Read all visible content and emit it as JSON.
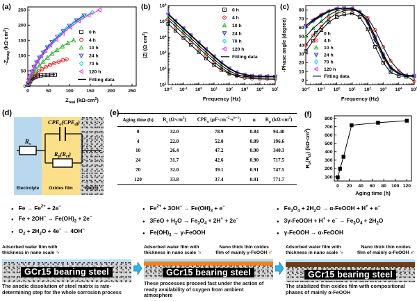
{
  "ui": {
    "bullet": "●",
    "pointer_left": "↘",
    "pointer_right": "↙"
  },
  "panels": {
    "a_tag": "(a)",
    "b_tag": "(b)",
    "c_tag": "(c)",
    "d_tag": "(d)",
    "e_tag": "(e)",
    "f_tag": "(f)"
  },
  "chart_data": [
    {
      "id": "a",
      "tag": "(a)",
      "type": "scatter",
      "xlabel": "Z_{real} (kΩ·cm^{2})",
      "ylabel": "-Z_{imag} (kΩ·cm^{2})",
      "xlim": [
        0,
        260
      ],
      "ylim": [
        0,
        260
      ],
      "xticks": [
        0,
        50,
        100,
        150,
        200,
        250
      ],
      "yticks": [
        0,
        50,
        100,
        150,
        200,
        250
      ],
      "fit_label": "Fitting data",
      "legend_position": "right-middle",
      "series": [
        {
          "name": "0 h",
          "marker": "square",
          "color": "#000000",
          "x": [
            1,
            2,
            4,
            6,
            9,
            13,
            18,
            24,
            31,
            39,
            48,
            57,
            65
          ],
          "y": [
            4,
            8,
            13,
            18,
            23,
            27,
            30,
            33,
            35,
            36,
            36,
            37,
            37
          ]
        },
        {
          "name": "4 h",
          "marker": "circle",
          "color": "#ee1111",
          "x": [
            2,
            4,
            8,
            13,
            19,
            26,
            34,
            43,
            53,
            63,
            74,
            84,
            93
          ],
          "y": [
            8,
            15,
            24,
            32,
            40,
            48,
            55,
            62,
            69,
            75,
            80,
            85,
            88
          ]
        },
        {
          "name": "10 h",
          "marker": "tri-up",
          "color": "#19b219",
          "x": [
            2,
            5,
            9,
            14,
            20,
            28,
            37,
            47,
            58,
            70,
            83,
            96,
            110
          ],
          "y": [
            10,
            20,
            31,
            43,
            55,
            67,
            80,
            93,
            106,
            118,
            130,
            141,
            150
          ]
        },
        {
          "name": "24 h",
          "marker": "tri-down",
          "color": "#2121c8",
          "x": [
            1,
            3,
            6,
            10,
            15,
            21,
            28,
            37,
            47,
            58,
            71,
            85,
            100,
            117,
            135
          ],
          "y": [
            8,
            20,
            33,
            47,
            62,
            77,
            93,
            110,
            127,
            144,
            162,
            180,
            198,
            216,
            232
          ]
        },
        {
          "name": "70 h",
          "marker": "diamond",
          "color": "#00d2e6",
          "x": [
            1,
            3,
            6,
            10,
            15,
            22,
            30,
            40,
            51,
            63,
            77,
            93,
            110,
            131,
            155
          ],
          "y": [
            8,
            20,
            34,
            48,
            63,
            79,
            96,
            113,
            131,
            149,
            168,
            188,
            207,
            226,
            242
          ]
        },
        {
          "name": "120 h",
          "marker": "tri-left",
          "color": "#ee22ee",
          "x": [
            1,
            3,
            6,
            10,
            16,
            23,
            32,
            42,
            54,
            68,
            84,
            102,
            122,
            146,
            172
          ],
          "y": [
            8,
            21,
            34,
            49,
            65,
            81,
            98,
            116,
            134,
            153,
            173,
            193,
            214,
            233,
            250
          ]
        }
      ]
    },
    {
      "id": "b",
      "tag": "(b)",
      "type": "line",
      "xscale": "log",
      "yscale": "log",
      "xlabel": "Frequency (Hz)",
      "ylabel": "|Z| (Ω·cm^{2})",
      "xlim": [
        0.01,
        100000
      ],
      "ylim": [
        10,
        1000000
      ],
      "fit_label": "Fitting data",
      "legend_position": "top-right",
      "x": [
        0.01,
        0.03,
        0.1,
        0.3,
        1,
        3,
        10,
        30,
        100,
        300,
        1000,
        3000,
        10000,
        30000,
        100000
      ],
      "series": [
        {
          "name": "0 h",
          "marker": "square",
          "color": "#000000",
          "values": [
            70000,
            26000,
            8800,
            3300,
            1140,
            445,
            172,
            84,
            50,
            38.5,
            34,
            33,
            32.3,
            32.1,
            32
          ]
        },
        {
          "name": "4 h",
          "marker": "circle",
          "color": "#ee1111",
          "values": [
            128000,
            47700,
            16100,
            6000,
            2050,
            777,
            277,
            117,
            54,
            34,
            26,
            23.5,
            22.6,
            22.2,
            22
          ]
        },
        {
          "name": "10 h",
          "marker": "tri-up",
          "color": "#19b219",
          "values": [
            186000,
            69300,
            23400,
            8700,
            2975,
            1123,
            398,
            164,
            73,
            44,
            32,
            28,
            27,
            26.6,
            26.4
          ]
        },
        {
          "name": "24 h",
          "marker": "tri-down",
          "color": "#2121c8",
          "values": [
            267000,
            99500,
            33600,
            12500,
            4265,
            1606,
            564,
            230,
            99,
            57,
            41,
            35,
            33,
            32,
            31.7
          ]
        },
        {
          "name": "70 h",
          "marker": "diamond",
          "color": "#00d2e6",
          "values": [
            287000,
            107000,
            36100,
            13400,
            4580,
            1724,
            605,
            245,
            104,
            59,
            42,
            35.5,
            33.4,
            32.5,
            32
          ]
        },
        {
          "name": "120 h",
          "marker": "tri-left",
          "color": "#ee22ee",
          "values": [
            304000,
            113000,
            38300,
            14200,
            4850,
            1826,
            640,
            259,
            110,
            62,
            44,
            37,
            34.9,
            34.2,
            33.8
          ]
        }
      ]
    },
    {
      "id": "c",
      "tag": "(c)",
      "type": "line",
      "xscale": "log",
      "xlabel": "Frequency (Hz)",
      "ylabel": "-Phase angle (degree)",
      "xlim": [
        0.01,
        100000
      ],
      "ylim": [
        -5,
        85
      ],
      "yticks": [
        0,
        10,
        20,
        30,
        40,
        50,
        60,
        70,
        80
      ],
      "fit_label": "Fitting data",
      "legend_position": "bottom-left",
      "x": [
        0.01,
        0.03,
        0.1,
        0.3,
        1,
        3,
        10,
        30,
        100,
        300,
        1000,
        3000,
        10000,
        30000,
        100000
      ],
      "series": [
        {
          "name": "0 h",
          "marker": "square",
          "color": "#000000",
          "values": [
            33,
            45,
            57,
            66,
            72,
            75,
            76,
            72,
            58,
            38,
            20,
            9,
            5,
            4,
            5
          ]
        },
        {
          "name": "4 h",
          "marker": "circle",
          "color": "#ee1111",
          "values": [
            40,
            51,
            61,
            70,
            76,
            79,
            80,
            78,
            71,
            57,
            38,
            22,
            11,
            5,
            -1
          ]
        },
        {
          "name": "10 h",
          "marker": "tri-up",
          "color": "#19b219",
          "values": [
            50,
            59,
            67,
            74,
            79,
            81,
            81,
            78,
            68,
            50,
            30,
            15,
            8,
            5,
            4
          ]
        },
        {
          "name": "24 h",
          "marker": "tri-down",
          "color": "#2121c8",
          "values": [
            62,
            68,
            74,
            78,
            81,
            82,
            81,
            77,
            65,
            45,
            26,
            13,
            7,
            5,
            4
          ]
        },
        {
          "name": "70 h",
          "marker": "diamond",
          "color": "#00d2e6",
          "values": [
            60,
            67,
            73,
            78,
            81,
            82,
            82,
            78,
            67,
            48,
            28,
            14,
            8,
            5,
            5
          ]
        },
        {
          "name": "120 h",
          "marker": "tri-left",
          "color": "#ee22ee",
          "values": [
            62,
            69,
            75,
            79,
            82,
            82,
            82,
            78,
            67,
            49,
            29,
            15,
            8,
            6,
            5
          ]
        }
      ]
    },
    {
      "id": "f",
      "tag": "(f)",
      "type": "line",
      "xlabel": "Aging time (h)",
      "ylabel": "R_{p}(R_{ct}) (kΩ·cm^{2})",
      "xlim": [
        -6,
        128
      ],
      "ylim": [
        50,
        830
      ],
      "xticks": [
        0,
        20,
        40,
        60,
        80,
        100,
        120
      ],
      "yticks": [
        100,
        200,
        300,
        400,
        500,
        600,
        700,
        800
      ],
      "series": [
        {
          "name": "Rp(Rct)",
          "marker": "square",
          "color": "#000000",
          "x": [
            0,
            4,
            10,
            24,
            70,
            120
          ],
          "y": [
            94.4,
            196.6,
            340.3,
            717.5,
            747.5,
            771.7
          ]
        }
      ]
    }
  ],
  "circuit": {
    "rs": "R_{s}",
    "cpe": "CPE_{o}(CPE_{dl})",
    "rp": "R_{p}(R_{ct})",
    "bands": [
      "Electrolyte",
      "Oxides film",
      "Matrix"
    ]
  },
  "table": {
    "headers": [
      "Aging time (h)",
      "R_{s} (Ω·cm^{2})",
      "CPE_{o} (μF·cm^{−2}·s^{n−1})",
      "n",
      "R_{p} (kΩ·cm^{2})"
    ],
    "rows": [
      [
        "0",
        "32.0",
        "78.9",
        "0.84",
        "94.40"
      ],
      [
        "4",
        "22.0",
        "52.0",
        "0.89",
        "196.6"
      ],
      [
        "10",
        "26.4",
        "47.2",
        "0.90",
        "340.3"
      ],
      [
        "24",
        "31.7",
        "42.6",
        "0.90",
        "717.5"
      ],
      [
        "70",
        "32.0",
        "39.1",
        "0.91",
        "747.5"
      ],
      [
        "120",
        "33.8",
        "37.4",
        "0.91",
        "771.7"
      ]
    ]
  },
  "equations": {
    "col1": [
      "Fe → Fe^{2+} + 2e^{−}",
      "Fe + 2OH^{−} → Fe(OH)_{2} + 2e^{−}",
      "O_{2} + 2H_{2}O + 4e^{−} → 4OH^{−}"
    ],
    "col2": [
      "Fe^{2+} + 3OH^{−} → Fe(OH)_{3} + e^{−}",
      "3FeO + H_{2}O → Fe_{3}O_{4} + 2H^{+} + 2e^{−}",
      "Fe(OH)_{3} → γ-FeOOH"
    ],
    "col3": [
      "Fe_{3}O_{4} + 2H_{2}O → α-FeOOH + H^{+} + e^{−}",
      "3γ-FeOOH + H^{+} + e^{−} → Fe_{3}O_{4} + 2H_{2}O",
      "γ-FeOOH → α-FeOOH"
    ]
  },
  "schematics": [
    {
      "label_left": "Adsorbed water film with thickness in nano scale",
      "label_right": "",
      "steel": "GCr15 bearing steel",
      "caption": "The anodic dissolution of steel matrix is rate-determining step for the whole corrosion process"
    },
    {
      "label_left": "Adsorbed water film with thickness in nano scale",
      "label_right": "Nano thick thin oxides film of mainly γ-FeOOH",
      "steel": "GCr15 bearing steel",
      "caption": "These processes proceed fast under the action of ready availability of oxygen from ambient atmosphere"
    },
    {
      "label_left": "Adsorbed water film with thickness in nano scale",
      "label_right": "Nano thick thin oxides film of mainly α-FeOOH",
      "steel": "GCr15 bearing steel",
      "caption": "The stabilized thin oxides film with compositional phases of mainly α-FeOOH"
    }
  ],
  "colors": {
    "water_film": "#b9dcf5",
    "gamma_oxide": "#f08221",
    "alpha_oxide": "#6e3d15",
    "electrolyte_band": "#b8d8f0",
    "oxide_band": "#fbe089",
    "process_arrow": "#2fb3e8"
  }
}
